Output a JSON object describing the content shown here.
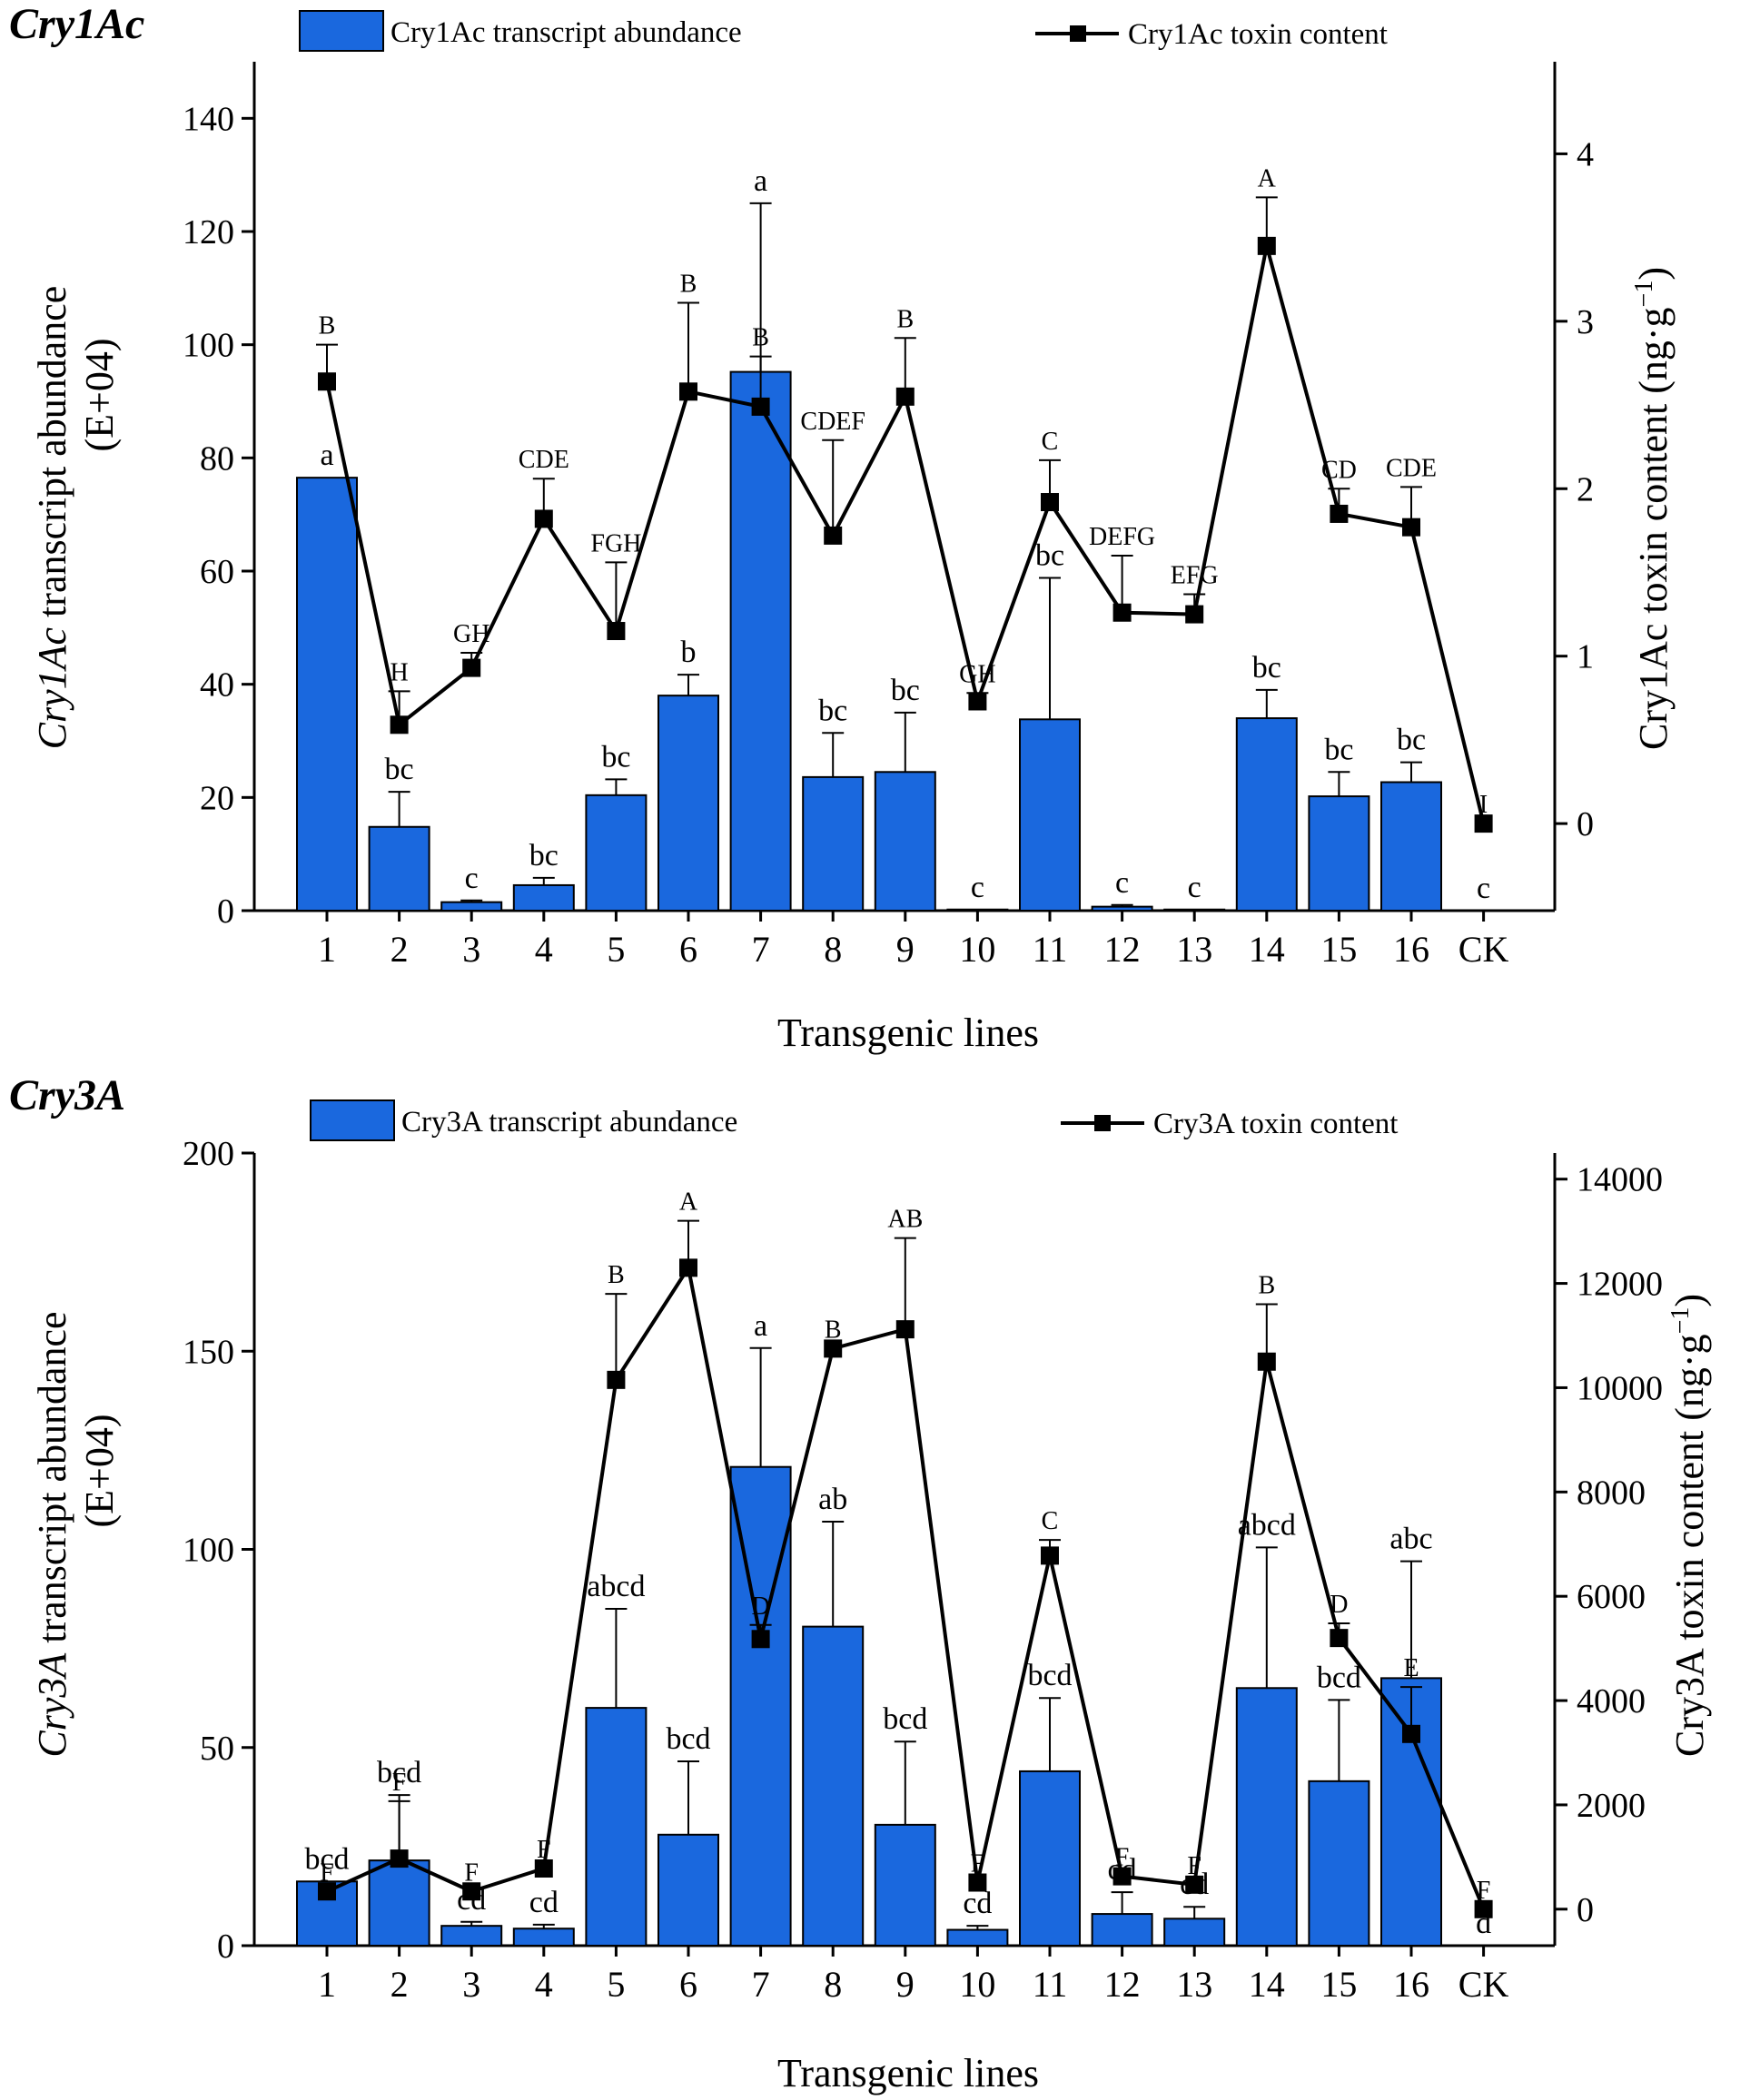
{
  "chart_data": [
    {
      "type": "bar+line",
      "panel_title": "Cry1Ac",
      "categories": [
        "1",
        "2",
        "3",
        "4",
        "5",
        "6",
        "7",
        "8",
        "9",
        "10",
        "11",
        "12",
        "13",
        "14",
        "15",
        "16",
        "CK"
      ],
      "xlabel": "Transgenic lines",
      "ylabel_left_gene": "Cry1Ac",
      "ylabel_left_rest": " transcript abundance",
      "ylabel_left_unit": "(E+04)",
      "ylabel_right_main": "Cry1Ac toxin content (ng·g",
      "ylabel_right_sup": "−1",
      "ylabel_right_end": ")",
      "ylim_left": [
        0,
        150
      ],
      "yticks_left": [
        0,
        20,
        40,
        60,
        80,
        100,
        120,
        140
      ],
      "ylim_right": [
        -0.52,
        4.55
      ],
      "yticks_right": [
        0,
        1,
        2,
        3,
        4
      ],
      "legend_bar": "Cry1Ac transcript abundance",
      "legend_line": "Cry1Ac toxin content",
      "bar_color": "#1a68de",
      "bar_values": [
        76.5,
        14.8,
        1.5,
        4.5,
        20.4,
        38.0,
        95.2,
        23.6,
        24.5,
        0.2,
        33.8,
        0.7,
        0.2,
        34.0,
        20.2,
        22.7,
        0
      ],
      "bar_err": [
        0,
        6.2,
        0.3,
        1.3,
        2.8,
        3.7,
        29.8,
        7.8,
        10.5,
        0,
        25.0,
        0.3,
        0,
        5.0,
        4.3,
        3.5,
        0
      ],
      "bar_letters": [
        "a",
        "bc",
        "c",
        "bc",
        "bc",
        "b",
        "a",
        "bc",
        "bc",
        "c",
        "bc",
        "c",
        "c",
        "bc",
        "bc",
        "bc",
        "c"
      ],
      "line_values": [
        2.64,
        0.59,
        0.93,
        1.82,
        1.15,
        2.58,
        2.49,
        1.72,
        2.55,
        0.73,
        1.92,
        1.26,
        1.25,
        3.45,
        1.85,
        1.77,
        0
      ],
      "line_err": [
        0.22,
        0.2,
        0.09,
        0.24,
        0.41,
        0.53,
        0.3,
        0.57,
        0.35,
        0.05,
        0.25,
        0.34,
        0.12,
        0.29,
        0.15,
        0.24,
        0
      ],
      "line_letters": [
        "B",
        "H",
        "GH",
        "CDE",
        "FGH",
        "B",
        "B",
        "CDEF",
        "B",
        "GH",
        "C",
        "DEFG",
        "EFG",
        "A",
        "CD",
        "CDE",
        "I"
      ]
    },
    {
      "type": "bar+line",
      "panel_title": "Cry3A",
      "categories": [
        "1",
        "2",
        "3",
        "4",
        "5",
        "6",
        "7",
        "8",
        "9",
        "10",
        "11",
        "12",
        "13",
        "14",
        "15",
        "16",
        "CK"
      ],
      "xlabel": "Transgenic lines",
      "ylabel_left_gene": "Cry3A",
      "ylabel_left_rest": " transcript abundance",
      "ylabel_left_unit": "(E+04)",
      "ylabel_right_main": "Cry3A toxin content (ng·g",
      "ylabel_right_sup": "−1",
      "ylabel_right_end": ")",
      "ylim_left": [
        0,
        200
      ],
      "yticks_left": [
        0,
        50,
        100,
        150,
        200
      ],
      "ylim_right": [
        -700,
        14500
      ],
      "yticks_right": [
        0,
        2000,
        4000,
        6000,
        8000,
        10000,
        12000,
        14000
      ],
      "legend_bar": "Cry3A transcript abundance",
      "legend_line": "Cry3A toxin content",
      "bar_color": "#1a68de",
      "bar_values": [
        16.2,
        21.5,
        5.0,
        4.3,
        60.0,
        28.0,
        120.8,
        80.5,
        30.5,
        4.0,
        44.0,
        8.0,
        6.8,
        65.0,
        41.5,
        67.5,
        0
      ],
      "bar_err": [
        0,
        16.5,
        1.0,
        1.0,
        25.0,
        18.5,
        30.0,
        26.5,
        21.0,
        1.0,
        18.5,
        5.5,
        3.0,
        35.5,
        20.5,
        29.5,
        0
      ],
      "bar_letters": [
        "bcd",
        "bcd",
        "cd",
        "cd",
        "abcd",
        "bcd",
        "a",
        "ab",
        "bcd",
        "cd",
        "bcd",
        "cd",
        "cd",
        "abcd",
        "bcd",
        "abc",
        "d"
      ],
      "line_values": [
        340,
        970,
        340,
        780,
        10150,
        12300,
        5180,
        10750,
        11120,
        510,
        6780,
        630,
        470,
        10500,
        5200,
        3360,
        0
      ],
      "line_err": [
        0,
        1100,
        0,
        0,
        1650,
        900,
        270,
        0,
        1750,
        0,
        300,
        0,
        0,
        1100,
        280,
        900,
        0
      ],
      "line_letters": [
        "F",
        "F",
        "F",
        "F",
        "B",
        "A",
        "D",
        "B",
        "AB",
        "F",
        "C",
        "F",
        "F",
        "B",
        "D",
        "E",
        "F"
      ]
    }
  ]
}
